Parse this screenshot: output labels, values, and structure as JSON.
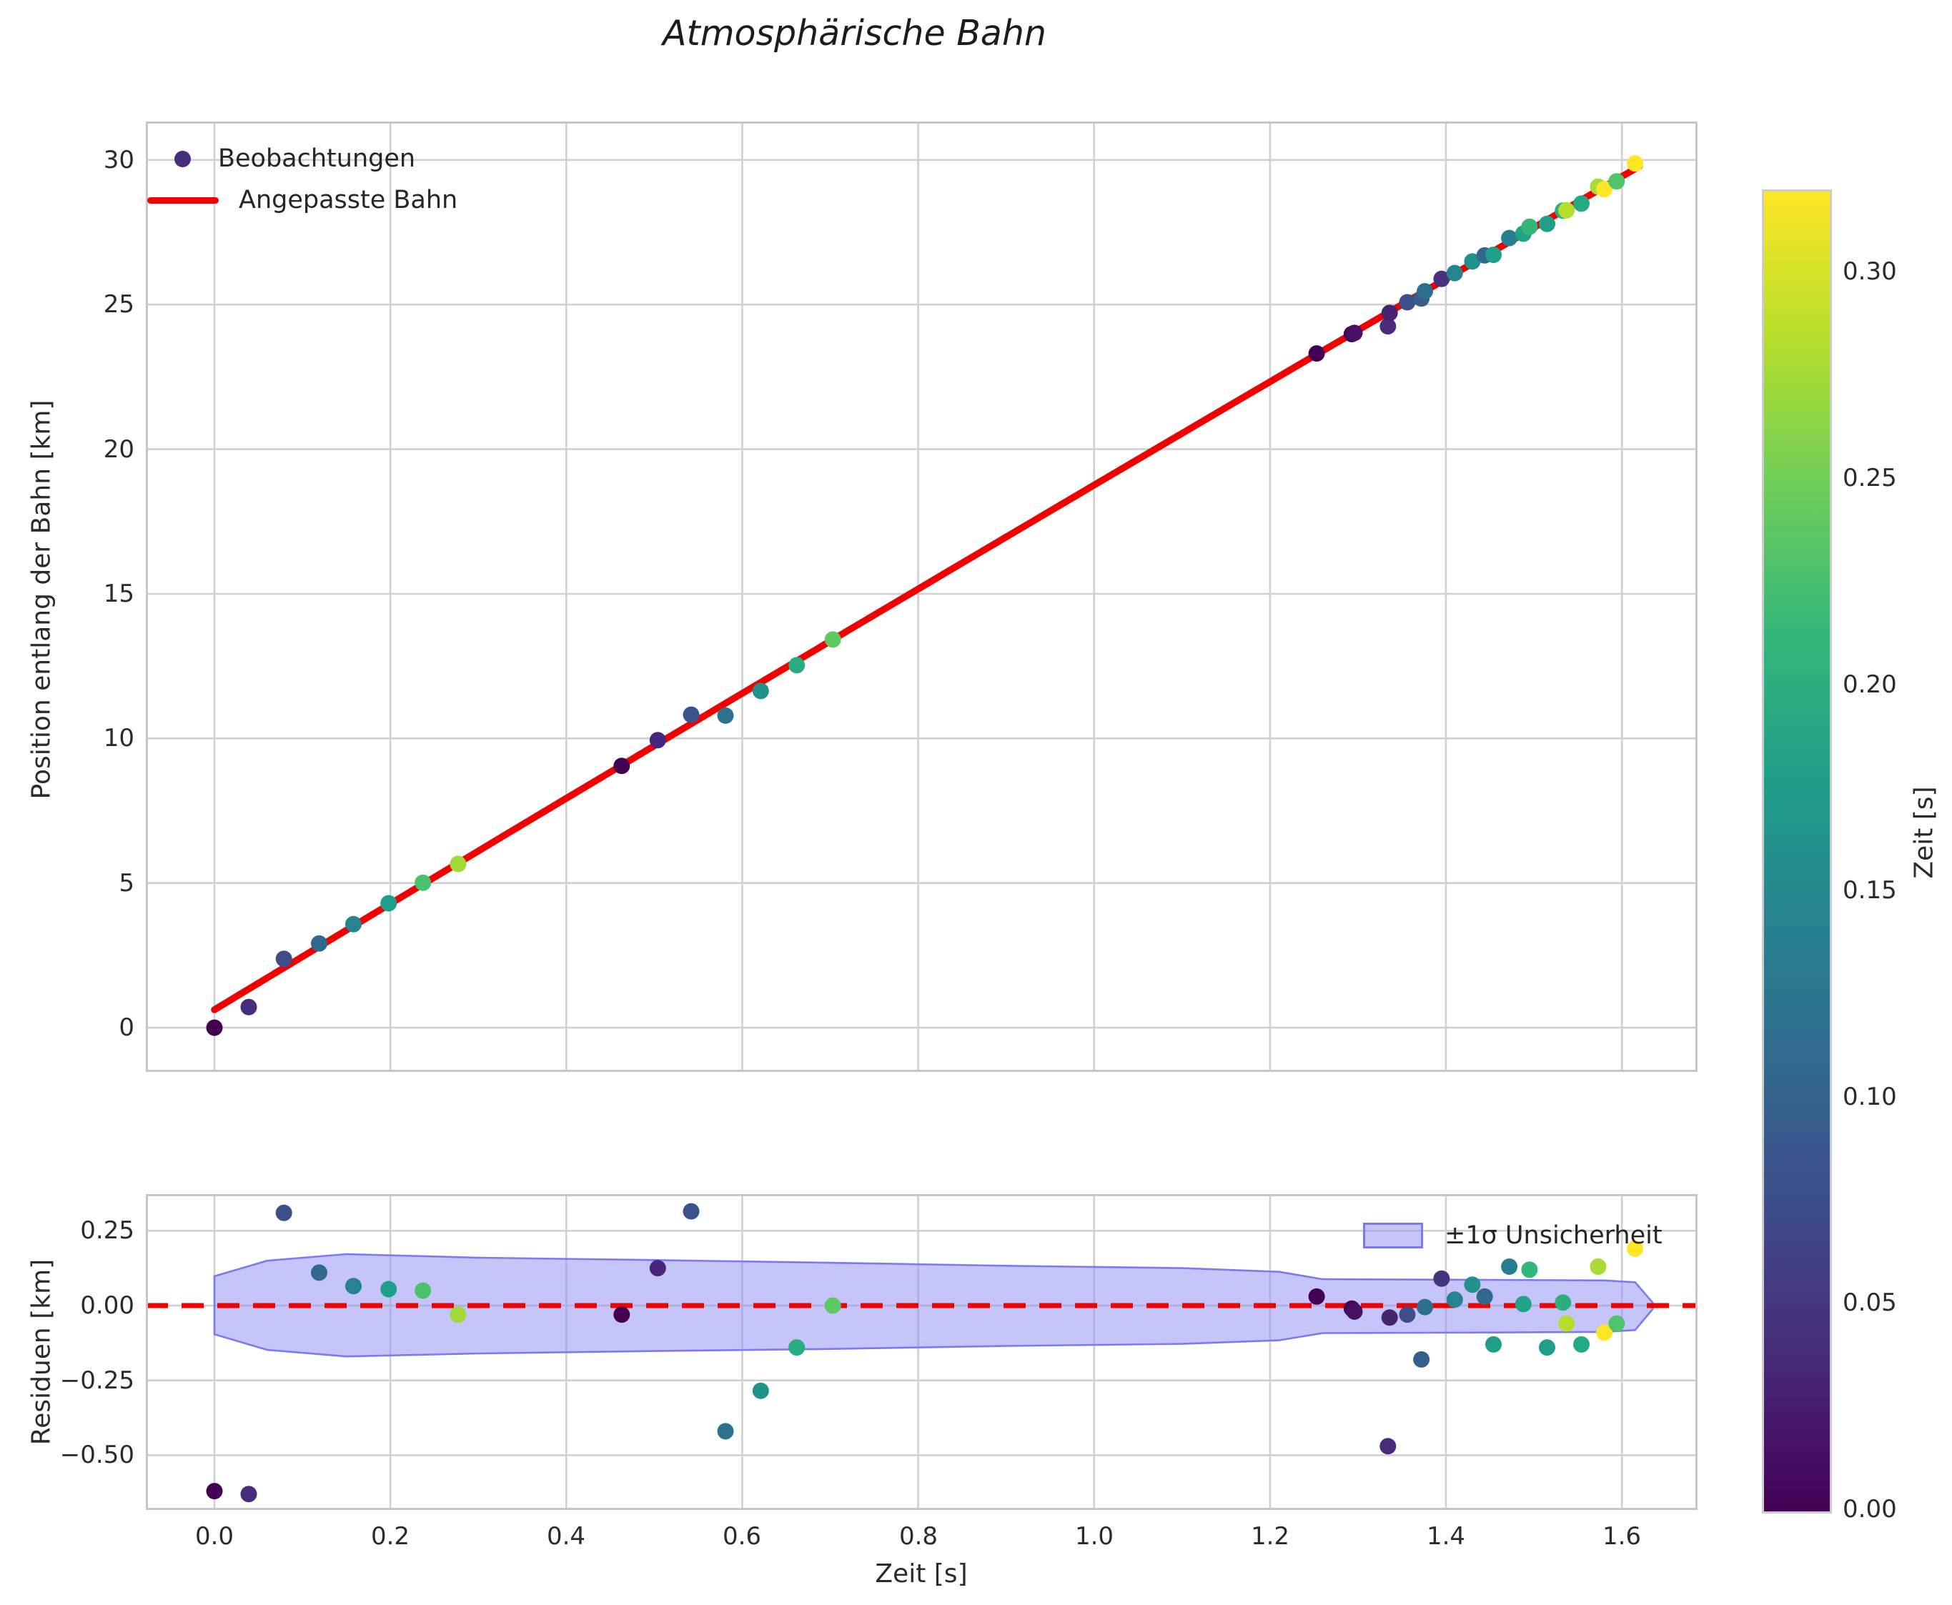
{
  "title": "Atmosphärische Bahn",
  "top_panel": {
    "ylabel": "Position entlang der Bahn [km]",
    "legend": {
      "observations": "Beobachtungen",
      "fit": "Angepasste Bahn"
    }
  },
  "bottom_panel": {
    "ylabel": "Residuen [km]",
    "xlabel": "Zeit [s]",
    "legend": {
      "band": "±1σ Unsicherheit"
    }
  },
  "colorbar_panel": {
    "label": "Zeit [s]"
  },
  "colors": {
    "fit_line": "#f10000",
    "zero_line": "#f10000",
    "band_fill": "#8f8ff5",
    "band_edge": "#7a7af2",
    "grid": "#d0d0d0",
    "spine": "#c6c6c6",
    "legend_dot": "#472d7b"
  },
  "chart_data": {
    "type": "scatter",
    "title": "Atmosphärische Bahn",
    "xlabel": "Zeit [s]",
    "xlim": [
      -0.078,
      1.686
    ],
    "xticks": {
      "values": [
        0.0,
        0.2,
        0.4,
        0.6,
        0.8,
        1.0,
        1.2,
        1.4,
        1.6
      ],
      "labels": [
        "0.0",
        "0.2",
        "0.4",
        "0.6",
        "0.8",
        "1.0",
        "1.2",
        "1.4",
        "1.6"
      ]
    },
    "panels": [
      {
        "id": "trajectory",
        "ylabel": "Position entlang der Bahn [km]",
        "ylim": [
          -1.53,
          31.33
        ],
        "yticks": {
          "values": [
            0,
            5,
            10,
            15,
            20,
            25,
            30
          ],
          "labels": [
            "0",
            "5",
            "10",
            "15",
            "20",
            "25",
            "30"
          ]
        },
        "grid": true,
        "fit_line": {
          "label": "Angepasste Bahn",
          "color": "#f10000",
          "model": "s(t) = a + b*t + c*t^2",
          "a": 0.62,
          "b": 18.36,
          "c": -0.222,
          "t_range": [
            0.0,
            1.62
          ]
        }
      },
      {
        "id": "residuals",
        "ylabel": "Residuen [km]",
        "ylim": [
          -0.683,
          0.3725
        ],
        "yticks": {
          "values": [
            0.25,
            0.0,
            -0.25,
            -0.5
          ],
          "labels": [
            "0.25",
            "0.00",
            "−0.25",
            "−0.50"
          ]
        },
        "grid": true,
        "zero_line": {
          "y": 0,
          "color": "#f10000",
          "style": "dashed"
        },
        "band": {
          "label": "±1σ Unsicherheit",
          "t": [
            0.0,
            0.06,
            0.15,
            0.3,
            0.5,
            0.7,
            0.9,
            1.1,
            1.21,
            1.26,
            1.45,
            1.58,
            1.615,
            1.635
          ],
          "upper": [
            0.098,
            0.15,
            0.172,
            0.16,
            0.152,
            0.143,
            0.133,
            0.125,
            0.113,
            0.088,
            0.086,
            0.084,
            0.078,
            0.01
          ],
          "lower": [
            -0.096,
            -0.148,
            -0.17,
            -0.16,
            -0.152,
            -0.145,
            -0.135,
            -0.128,
            -0.116,
            -0.092,
            -0.09,
            -0.088,
            -0.082,
            -0.012
          ]
        }
      }
    ],
    "observations": {
      "label": "Beobachtungen",
      "columns": [
        "t_s",
        "position_km",
        "residual_km",
        "color"
      ],
      "points": [
        [
          0.0,
          0.0,
          -0.62,
          "#440154"
        ],
        [
          0.039,
          0.71,
          -0.63,
          "#472d7b"
        ],
        [
          0.079,
          2.38,
          0.31,
          "#3d4e8a"
        ],
        [
          0.119,
          2.91,
          0.11,
          "#31688e"
        ],
        [
          0.158,
          3.58,
          0.065,
          "#26828e"
        ],
        [
          0.198,
          4.3,
          0.055,
          "#1f9e89"
        ],
        [
          0.237,
          5.01,
          0.05,
          "#49c16d"
        ],
        [
          0.277,
          5.66,
          -0.03,
          "#a0da39"
        ],
        [
          0.463,
          9.05,
          -0.03,
          "#440154"
        ],
        [
          0.504,
          9.94,
          0.125,
          "#46277d"
        ],
        [
          0.542,
          10.82,
          0.315,
          "#3a538b"
        ],
        [
          0.581,
          10.79,
          -0.42,
          "#2c718e"
        ],
        [
          0.621,
          11.64,
          -0.285,
          "#21918c"
        ],
        [
          0.662,
          12.53,
          -0.14,
          "#27ad81"
        ],
        [
          0.703,
          13.42,
          0.0,
          "#5ec962"
        ],
        [
          1.253,
          23.31,
          0.03,
          "#440154"
        ],
        [
          1.293,
          23.98,
          -0.01,
          "#450457"
        ],
        [
          1.296,
          24.02,
          -0.02,
          "#471063"
        ],
        [
          1.334,
          24.25,
          -0.47,
          "#472d7b"
        ],
        [
          1.336,
          24.71,
          -0.04,
          "#46246e"
        ],
        [
          1.356,
          25.08,
          -0.03,
          "#3d4e8a"
        ],
        [
          1.372,
          25.21,
          -0.18,
          "#355e8d"
        ],
        [
          1.376,
          25.46,
          -0.005,
          "#2d708e"
        ],
        [
          1.395,
          25.89,
          0.09,
          "#46327e"
        ],
        [
          1.41,
          26.09,
          0.02,
          "#25848e"
        ],
        [
          1.43,
          26.49,
          0.07,
          "#21918c"
        ],
        [
          1.444,
          26.7,
          0.03,
          "#31688e"
        ],
        [
          1.454,
          26.72,
          -0.13,
          "#1f9e89"
        ],
        [
          1.472,
          27.3,
          0.13,
          "#277f8e"
        ],
        [
          1.488,
          27.45,
          0.005,
          "#20a386"
        ],
        [
          1.495,
          27.69,
          0.12,
          "#34b679"
        ],
        [
          1.515,
          27.79,
          -0.14,
          "#1f9e89"
        ],
        [
          1.533,
          28.25,
          0.01,
          "#2ab07f"
        ],
        [
          1.537,
          28.26,
          -0.06,
          "#b5de2b"
        ],
        [
          1.554,
          28.49,
          -0.13,
          "#23a983"
        ],
        [
          1.573,
          29.08,
          0.13,
          "#a8db34"
        ],
        [
          1.58,
          28.99,
          -0.09,
          "#fde725"
        ],
        [
          1.594,
          29.26,
          -0.06,
          "#50c46a"
        ],
        [
          1.615,
          29.88,
          0.19,
          "#fde725"
        ]
      ]
    },
    "colorbar": {
      "label": "Zeit [s]",
      "vmin": 0.0,
      "vmax": 0.32,
      "cmap": "viridis",
      "ticks": {
        "values": [
          0.0,
          0.05,
          0.1,
          0.15,
          0.2,
          0.25,
          0.3
        ],
        "labels": [
          "0.00",
          "0.05",
          "0.10",
          "0.15",
          "0.20",
          "0.25",
          "0.30"
        ]
      },
      "stops": [
        "#440154",
        "#482878",
        "#3e4a89",
        "#31688e",
        "#26828e",
        "#1f9e89",
        "#35b779",
        "#6ece58",
        "#b5de2b",
        "#fde725"
      ]
    },
    "legend_position": {
      "trajectory": "upper left",
      "residuals": "upper right"
    }
  }
}
